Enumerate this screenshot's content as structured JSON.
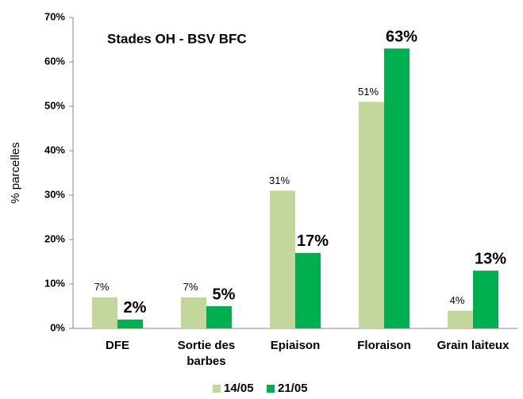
{
  "chart_data": {
    "type": "bar",
    "title": "Stades OH - BSV BFC",
    "ylabel": "% parcelles",
    "categories": [
      "DFE",
      "Sortie des barbes",
      "Epiaison",
      "Floraison",
      "Grain laiteux"
    ],
    "series": [
      {
        "name": "14/05",
        "color": "#c3d69b",
        "values": [
          7,
          7,
          31,
          51,
          4
        ],
        "value_labels": [
          "7%",
          "7%",
          "31%",
          "51%",
          "4%"
        ]
      },
      {
        "name": "21/05",
        "color": "#00b050",
        "values": [
          2,
          5,
          17,
          63,
          13
        ],
        "value_labels": [
          "2%",
          "5%",
          "17%",
          "63%",
          "13%"
        ]
      }
    ],
    "ylim": [
      0,
      70
    ],
    "yticks": [
      {
        "value": 0,
        "label": "0%"
      },
      {
        "value": 10,
        "label": "10%"
      },
      {
        "value": 20,
        "label": "20%"
      },
      {
        "value": 30,
        "label": "30%"
      },
      {
        "value": 40,
        "label": "40%"
      },
      {
        "value": 50,
        "label": "50%"
      },
      {
        "value": 60,
        "label": "60%"
      },
      {
        "value": 70,
        "label": "70%"
      }
    ],
    "legend": "bottom"
  }
}
